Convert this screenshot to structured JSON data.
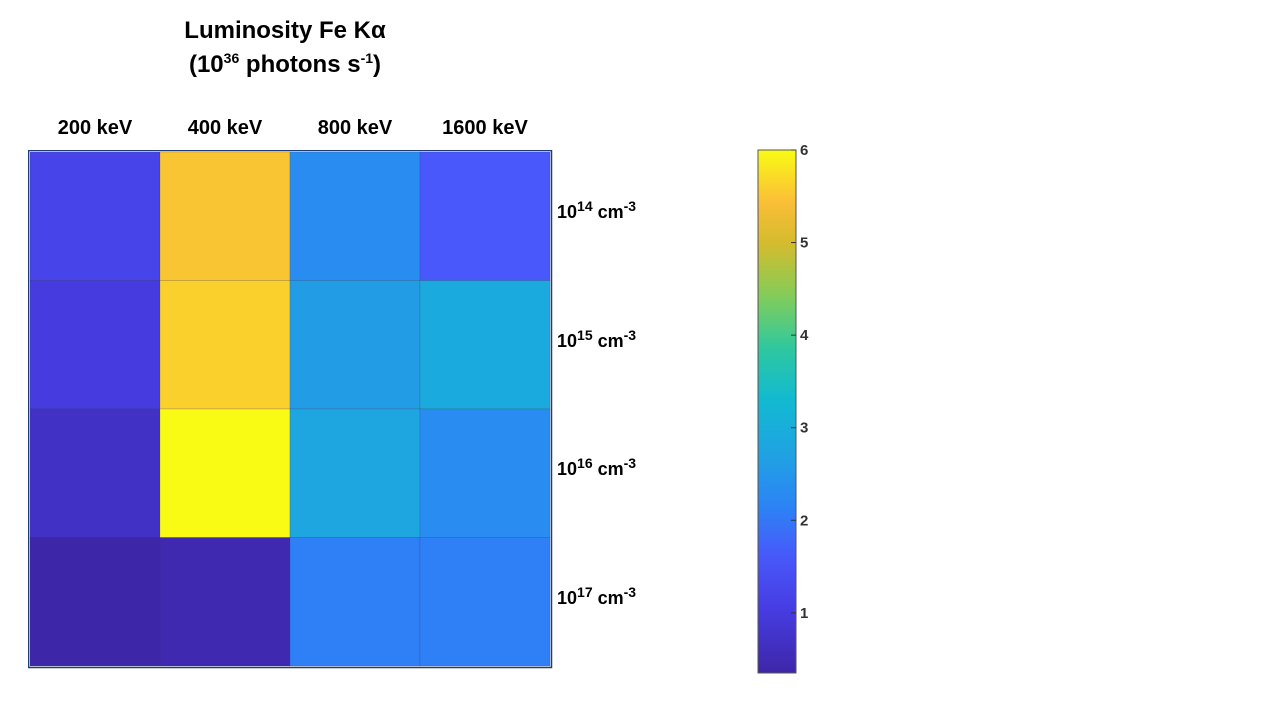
{
  "title": {
    "line1": "Luminosity Fe Kα",
    "line2_prefix": "(10",
    "line2_exp": "36",
    "line2_mid": " photons s",
    "line2_exp2": "-1",
    "line2_suffix": ")"
  },
  "chart_data": {
    "type": "heatmap",
    "title": "Luminosity Fe Kα (10^36 photons s^-1)",
    "columns": [
      "200 keV",
      "400 keV",
      "800 keV",
      "1600 keV"
    ],
    "rows": [
      {
        "base": "10",
        "exp": "14",
        "unit": " cm",
        "unit_exp": "-3"
      },
      {
        "base": "10",
        "exp": "15",
        "unit": " cm",
        "unit_exp": "-3"
      },
      {
        "base": "10",
        "exp": "16",
        "unit": " cm",
        "unit_exp": "-3"
      },
      {
        "base": "10",
        "exp": "17",
        "unit": " cm",
        "unit_exp": "-3"
      }
    ],
    "values": [
      [
        1.2,
        5.5,
        2.3,
        1.6
      ],
      [
        1.0,
        5.6,
        2.6,
        2.9
      ],
      [
        0.7,
        6.0,
        2.8,
        2.3
      ],
      [
        0.35,
        0.45,
        2.1,
        2.1
      ]
    ],
    "colorbar": {
      "min": 0.35,
      "max": 6.0,
      "ticks": [
        1,
        2,
        3,
        4,
        5,
        6
      ]
    },
    "colormap": "parula"
  }
}
